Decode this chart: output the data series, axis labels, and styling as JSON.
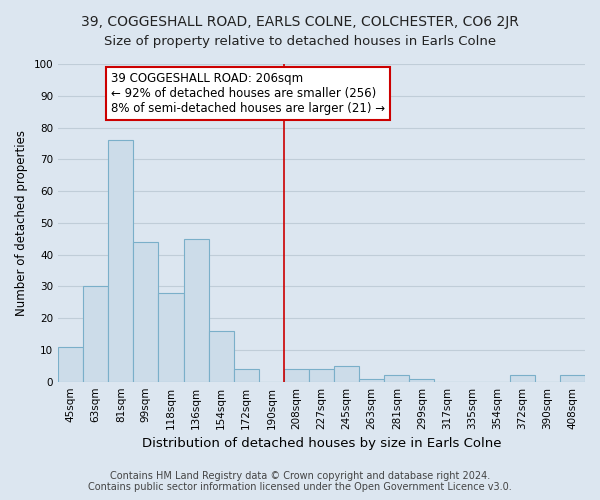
{
  "title": "39, COGGESHALL ROAD, EARLS COLNE, COLCHESTER, CO6 2JR",
  "subtitle": "Size of property relative to detached houses in Earls Colne",
  "xlabel": "Distribution of detached houses by size in Earls Colne",
  "ylabel": "Number of detached properties",
  "footnote1": "Contains HM Land Registry data © Crown copyright and database right 2024.",
  "footnote2": "Contains public sector information licensed under the Open Government Licence v3.0.",
  "categories": [
    "45sqm",
    "63sqm",
    "81sqm",
    "99sqm",
    "118sqm",
    "136sqm",
    "154sqm",
    "172sqm",
    "190sqm",
    "208sqm",
    "227sqm",
    "245sqm",
    "263sqm",
    "281sqm",
    "299sqm",
    "317sqm",
    "335sqm",
    "354sqm",
    "372sqm",
    "390sqm",
    "408sqm"
  ],
  "values": [
    11,
    30,
    76,
    44,
    28,
    45,
    16,
    4,
    0,
    4,
    4,
    5,
    1,
    2,
    1,
    0,
    0,
    0,
    2,
    0,
    2
  ],
  "bar_color": "#ccdce9",
  "bar_edge_color": "#7aafc9",
  "vline_color": "#cc0000",
  "annotation_title": "39 COGGESHALL ROAD: 206sqm",
  "annotation_line1": "← 92% of detached houses are smaller (256)",
  "annotation_line2": "8% of semi-detached houses are larger (21) →",
  "annotation_box_color": "#ffffff",
  "annotation_box_edge": "#cc0000",
  "ylim": [
    0,
    100
  ],
  "yticks": [
    0,
    10,
    20,
    30,
    40,
    50,
    60,
    70,
    80,
    90,
    100
  ],
  "fig_background_color": "#dce6f0",
  "plot_background_color": "#dce6f0",
  "grid_color": "#c0cdd8",
  "title_fontsize": 10,
  "subtitle_fontsize": 9.5,
  "xlabel_fontsize": 9.5,
  "ylabel_fontsize": 8.5,
  "tick_fontsize": 7.5,
  "annotation_fontsize": 8.5,
  "footnote_fontsize": 7
}
